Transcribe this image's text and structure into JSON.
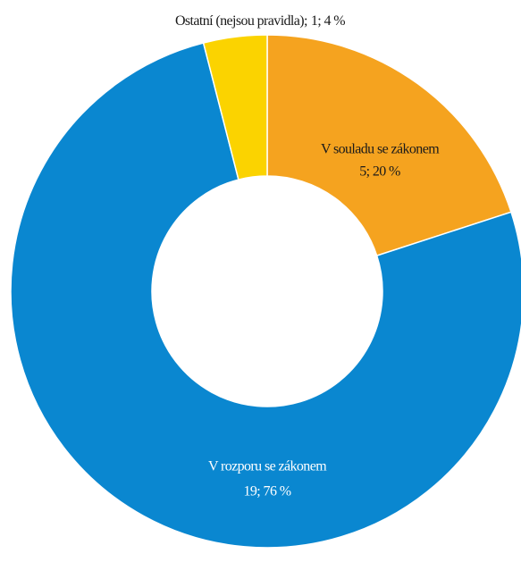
{
  "chart_data": {
    "type": "donut",
    "categories": [
      "V souladu se zákonem",
      "V rozporu se zákonem",
      "Ostatní (nejsou pravidla);"
    ],
    "values": [
      5,
      19,
      1
    ],
    "value_labels": [
      "5; 20 %",
      "19; 76 %",
      "1; 4 %"
    ],
    "colors": [
      "#f5a31f",
      "#0a87d0",
      "#fbd300"
    ]
  }
}
